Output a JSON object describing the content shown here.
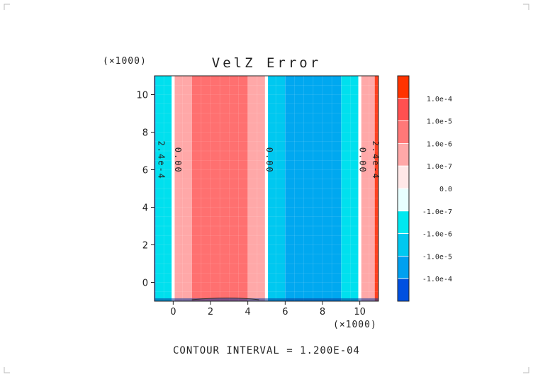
{
  "chart_data": {
    "type": "heatmap",
    "title": "VelZ Error",
    "x_scale_label": "(×1000)",
    "y_scale_label": "(×1000)",
    "xlim": [
      -1,
      11
    ],
    "ylim": [
      -1,
      11
    ],
    "x_ticks": [
      0,
      2,
      4,
      6,
      8,
      10
    ],
    "y_ticks": [
      0,
      2,
      4,
      6,
      8,
      10
    ],
    "footer": "CONTOUR INTERVAL = 1.200E-04",
    "contour_labels": [
      {
        "text": "0.00",
        "x": 0.1,
        "y": 6.5
      },
      {
        "text": "0.00",
        "x": 5.0,
        "y": 6.5
      },
      {
        "text": "0.00",
        "x": 10.0,
        "y": 6.5
      },
      {
        "text": "2.4e-4",
        "x": -0.8,
        "y": 6.5
      },
      {
        "text": "2.4e-4",
        "x": 10.7,
        "y": 6.5
      }
    ],
    "bands": [
      {
        "x0": -1.0,
        "x1": -0.95,
        "color": "#0050d8"
      },
      {
        "x0": -0.95,
        "x1": -0.08,
        "color": "#00e0ee"
      },
      {
        "x0": -0.08,
        "x1": 0.08,
        "color": "#ffffff"
      },
      {
        "x0": 0.08,
        "x1": 1.0,
        "color": "#ffa8a8"
      },
      {
        "x0": 1.0,
        "x1": 4.0,
        "color": "#ff7070"
      },
      {
        "x0": 4.0,
        "x1": 4.92,
        "color": "#ffa8a8"
      },
      {
        "x0": 4.92,
        "x1": 5.08,
        "color": "#ffffff"
      },
      {
        "x0": 5.08,
        "x1": 6.0,
        "color": "#00c8f0"
      },
      {
        "x0": 6.0,
        "x1": 9.0,
        "color": "#00a8f0"
      },
      {
        "x0": 9.0,
        "x1": 9.92,
        "color": "#00e0ee"
      },
      {
        "x0": 9.92,
        "x1": 10.08,
        "color": "#ffffff"
      },
      {
        "x0": 10.08,
        "x1": 10.8,
        "color": "#ffa8a8"
      },
      {
        "x0": 10.8,
        "x1": 11.0,
        "color": "#ff4020"
      }
    ],
    "colorbar": [
      {
        "label": "1.0e-4",
        "color": "#ff3300"
      },
      {
        "label": "1.0e-5",
        "color": "#ff5050"
      },
      {
        "label": "1.0e-6",
        "color": "#ff7878"
      },
      {
        "label": "1.0e-7",
        "color": "#ffa8a8"
      },
      {
        "label": "0.0",
        "color": "#ffe8e8"
      },
      {
        "label": "-1.0e-7",
        "color": "#e8ffff"
      },
      {
        "label": "-1.0e-6",
        "color": "#00e8f0"
      },
      {
        "label": "-1.0e-5",
        "color": "#00c8f0"
      },
      {
        "label": "-1.0e-4",
        "color": "#00a0f0"
      },
      {
        "label": "",
        "color": "#0050e0"
      }
    ]
  }
}
